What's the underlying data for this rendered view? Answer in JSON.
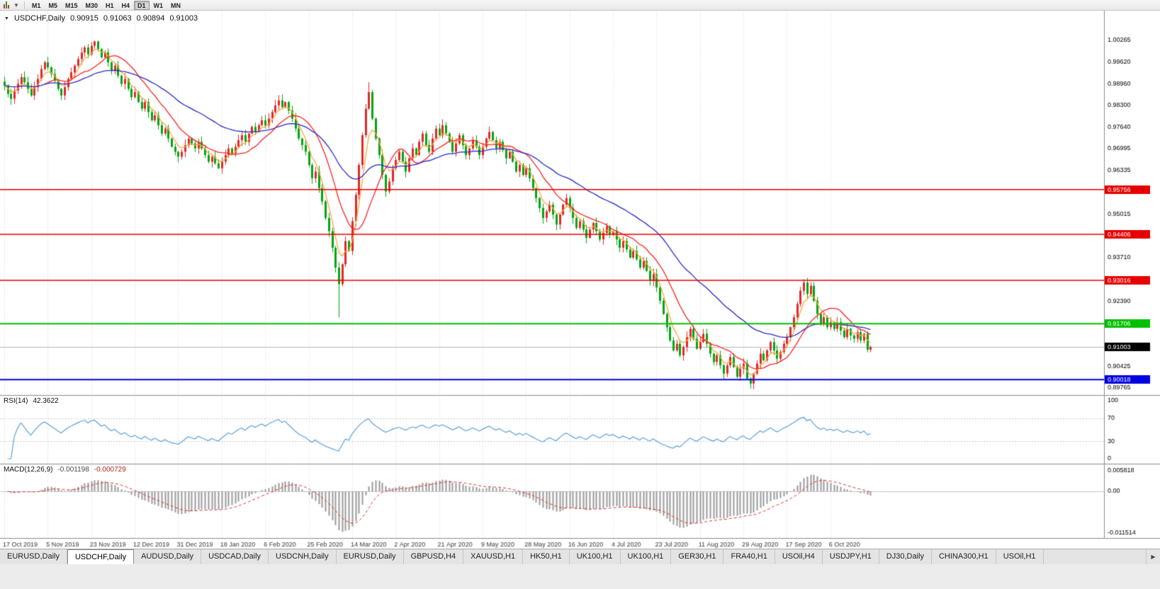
{
  "icons": {
    "collapse": "▼",
    "toolbar_caret": "▼",
    "tab_scroll_right": "▶"
  },
  "toolbar": {
    "timeframes": [
      {
        "label": "M1",
        "active": false
      },
      {
        "label": "M5",
        "active": false
      },
      {
        "label": "M15",
        "active": false
      },
      {
        "label": "M30",
        "active": false
      },
      {
        "label": "H1",
        "active": false
      },
      {
        "label": "H4",
        "active": false
      },
      {
        "label": "D1",
        "active": true
      },
      {
        "label": "W1",
        "active": false
      },
      {
        "label": "MN",
        "active": false
      }
    ]
  },
  "chart": {
    "symbol": "USDCHF,Daily",
    "ohlc": {
      "open": "0.90915",
      "high": "0.91063",
      "low": "0.90894",
      "close": "0.91003"
    },
    "axis_labels": [
      "1.00265",
      "0.99620",
      "0.98960",
      "0.98300",
      "0.97640",
      "0.96995",
      "0.96335",
      "0.95015",
      "0.93710",
      "0.92390",
      "0.90425",
      "0.89765"
    ],
    "hlines": [
      {
        "value": 0.95756,
        "label": "0.95756",
        "color": "#e60000",
        "width": 1.5
      },
      {
        "value": 0.94406,
        "label": "0.94406",
        "color": "#e60000",
        "width": 1.5
      },
      {
        "value": 0.93016,
        "label": "0.93016",
        "color": "#e60000",
        "width": 1.5
      },
      {
        "value": 0.91706,
        "label": "0.91706",
        "color": "#00c000",
        "width": 2
      },
      {
        "value": 0.90018,
        "label": "0.90018",
        "color": "#0000e0",
        "width": 2
      }
    ],
    "current_price": {
      "value": 0.91003,
      "label": "0.91003",
      "color": "#000000"
    },
    "colors": {
      "candle_up": "#e02828",
      "candle_down": "#00a510",
      "ma_fast": "#ffa640",
      "ma_mid": "#ff2020",
      "ma_slow": "#2828c8",
      "grid": "#d9d9d9",
      "axis_line": "#8c8c8c",
      "last_price_line": "#b4b4b4"
    }
  },
  "chart_data": {
    "type": "candlestick",
    "title": "USDCHF Daily",
    "ylim": [
      0.89765,
      1.00265
    ],
    "x_labels": [
      "17 Oct 2019",
      "5 Nov 2019",
      "23 Nov 2019",
      "12 Dec 2019",
      "31 Dec 2019",
      "18 Jan 2020",
      "6 Feb 2020",
      "25 Feb 2020",
      "14 Mar 2020",
      "2 Apr 2020",
      "21 Apr 2020",
      "9 May 2020",
      "28 May 2020",
      "16 Jun 2020",
      "4 Jul 2020",
      "23 Jul 2020",
      "11 Aug 2020",
      "29 Aug 2020",
      "17 Sep 2020",
      "6 Oct 2020"
    ],
    "bars_per_label": 13,
    "closes": [
      0.989,
      0.9865,
      0.985,
      0.9875,
      0.9895,
      0.9915,
      0.99,
      0.988,
      0.986,
      0.9885,
      0.991,
      0.994,
      0.996,
      0.9945,
      0.9925,
      0.9905,
      0.988,
      0.986,
      0.9885,
      0.991,
      0.993,
      0.995,
      0.997,
      0.999,
      1.0005,
      0.9985,
      1.001,
      1.0023,
      1.0,
      0.9975,
      0.999,
      0.996,
      0.9935,
      0.995,
      0.992,
      0.9895,
      0.991,
      0.988,
      0.9855,
      0.987,
      0.984,
      0.982,
      0.984,
      0.981,
      0.9785,
      0.98,
      0.977,
      0.9745,
      0.976,
      0.973,
      0.9705,
      0.969,
      0.9675,
      0.969,
      0.971,
      0.973,
      0.9715,
      0.97,
      0.972,
      0.97,
      0.968,
      0.966,
      0.9675,
      0.9655,
      0.964,
      0.966,
      0.968,
      0.97,
      0.9685,
      0.9705,
      0.9725,
      0.974,
      0.972,
      0.9745,
      0.9765,
      0.975,
      0.977,
      0.9785,
      0.977,
      0.979,
      0.981,
      0.983,
      0.9845,
      0.9825,
      0.984,
      0.9815,
      0.979,
      0.976,
      0.973,
      0.971,
      0.969,
      0.965,
      0.961,
      0.963,
      0.958,
      0.954,
      0.949,
      0.945,
      0.94,
      0.934,
      0.929,
      0.935,
      0.942,
      0.939,
      0.948,
      0.956,
      0.965,
      0.974,
      0.982,
      0.987,
      0.979,
      0.973,
      0.968,
      0.962,
      0.957,
      0.96,
      0.964,
      0.9665,
      0.969,
      0.966,
      0.963,
      0.967,
      0.97,
      0.968,
      0.972,
      0.9745,
      0.971,
      0.969,
      0.973,
      0.976,
      0.974,
      0.977,
      0.9745,
      0.972,
      0.969,
      0.9715,
      0.974,
      0.971,
      0.968,
      0.97,
      0.9725,
      0.9705,
      0.968,
      0.9705,
      0.973,
      0.975,
      0.9725,
      0.97,
      0.972,
      0.9695,
      0.967,
      0.969,
      0.966,
      0.963,
      0.965,
      0.962,
      0.964,
      0.961,
      0.958,
      0.955,
      0.952,
      0.949,
      0.951,
      0.953,
      0.95,
      0.947,
      0.95,
      0.953,
      0.955,
      0.952,
      0.949,
      0.946,
      0.948,
      0.9455,
      0.943,
      0.9455,
      0.9475,
      0.945,
      0.9425,
      0.9445,
      0.9465,
      0.944,
      0.945,
      0.9425,
      0.94,
      0.942,
      0.9395,
      0.937,
      0.939,
      0.9365,
      0.934,
      0.936,
      0.933,
      0.93,
      0.932,
      0.928,
      0.924,
      0.92,
      0.916,
      0.912,
      0.909,
      0.911,
      0.9075,
      0.91,
      0.913,
      0.9155,
      0.9125,
      0.9095,
      0.9115,
      0.914,
      0.911,
      0.908,
      0.9055,
      0.9075,
      0.9045,
      0.902,
      0.9045,
      0.907,
      0.904,
      0.901,
      0.9035,
      0.905,
      0.9005,
      0.899,
      0.902,
      0.905,
      0.908,
      0.906,
      0.909,
      0.9115,
      0.909,
      0.9065,
      0.9085,
      0.911,
      0.913,
      0.916,
      0.919,
      0.923,
      0.927,
      0.9295,
      0.926,
      0.9285,
      0.924,
      0.92,
      0.917,
      0.919,
      0.916,
      0.9175,
      0.9155,
      0.9175,
      0.915,
      0.913,
      0.9155,
      0.9135,
      0.9125,
      0.9145,
      0.912,
      0.914,
      0.9092,
      0.91003
    ],
    "special_wicks": {
      "27": {
        "high": 1.0026
      },
      "100": {
        "low": 0.919
      },
      "109": {
        "high": 0.99
      },
      "223": {
        "low": 0.8975
      }
    },
    "moving_averages": [
      {
        "kind": "ema",
        "period": 5,
        "color": "#ffa640"
      },
      {
        "kind": "sma",
        "period": 13,
        "color": "#ff2020"
      },
      {
        "kind": "ema",
        "period": 40,
        "color": "#2828c8"
      }
    ]
  },
  "rsi": {
    "label": "RSI(14)",
    "value": "42.3622",
    "period": 14,
    "axis_labels": [
      "100",
      "70",
      "30",
      "0"
    ],
    "levels": [
      70,
      30
    ],
    "color": "#5aa0d8"
  },
  "macd": {
    "label": "MACD(12,26,9)",
    "value_main": "-0.001198",
    "value_signal": "-0.000729",
    "fast": 12,
    "slow": 26,
    "signal": 9,
    "axis": {
      "max_label": "0.005818",
      "max": 0.005818,
      "zero_label": "0.00",
      "min_label": "-0.011514",
      "min": -0.011514
    },
    "hist_color": "#9a9a9a",
    "signal_color": "#e03030"
  },
  "tabs": [
    {
      "label": "EURUSD,Daily",
      "active": false
    },
    {
      "label": "USDCHF,Daily",
      "active": true
    },
    {
      "label": "AUDUSD,Daily",
      "active": false
    },
    {
      "label": "USDCAD,Daily",
      "active": false
    },
    {
      "label": "USDCNH,Daily",
      "active": false
    },
    {
      "label": "EURUSD,Daily",
      "active": false
    },
    {
      "label": "GBPUSD,H4",
      "active": false
    },
    {
      "label": "XAUUSD,H1",
      "active": false
    },
    {
      "label": "HK50,H1",
      "active": false
    },
    {
      "label": "UK100,H1",
      "active": false
    },
    {
      "label": "UK100,H1",
      "active": false
    },
    {
      "label": "GER30,H1",
      "active": false
    },
    {
      "label": "FRA40,H1",
      "active": false
    },
    {
      "label": "USOil,H4",
      "active": false
    },
    {
      "label": "USDJPY,H1",
      "active": false
    },
    {
      "label": "DJ30,Daily",
      "active": false
    },
    {
      "label": "CHINA300,H1",
      "active": false
    },
    {
      "label": "USOil,H1",
      "active": false
    }
  ]
}
